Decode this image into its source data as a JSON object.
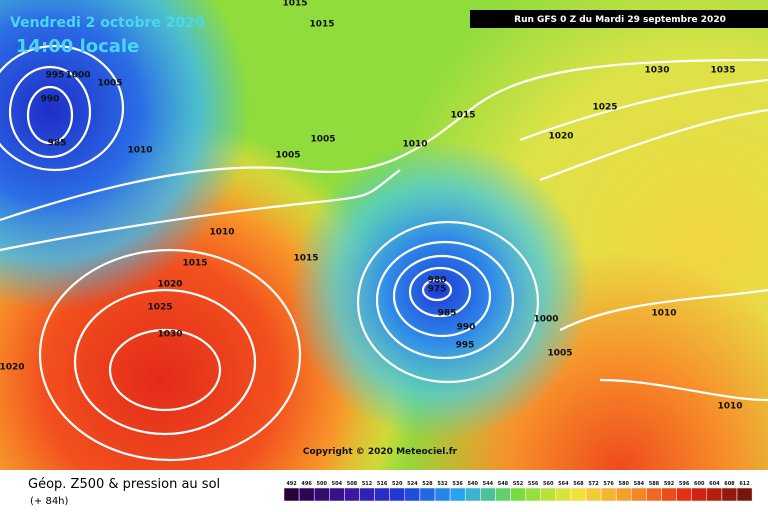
{
  "header": {
    "date": "Vendredi 2 octobre 2020",
    "time": "14:00 locale",
    "run": "Run GFS 0 Z du Mardi 29 septembre 2020"
  },
  "copyright": "Copyright © 2020 Meteociel.fr",
  "footer": {
    "title": "Géop. Z500 & pression au sol",
    "lead": "(+ 84h)"
  },
  "isobar_labels": [
    1015,
    1015,
    995,
    1000,
    1005,
    990,
    985,
    1010,
    1005,
    1005,
    1010,
    1015,
    1020,
    1025,
    1030,
    1035,
    1010,
    1015,
    1015,
    1020,
    1025,
    1030,
    1020,
    980,
    975,
    985,
    990,
    995,
    1000,
    1005,
    1010,
    1010
  ],
  "legend": [
    492,
    496,
    500,
    504,
    508,
    512,
    516,
    520,
    524,
    528,
    532,
    536,
    540,
    544,
    548,
    552,
    556,
    560,
    564,
    568,
    572,
    576,
    580,
    584,
    588,
    592,
    596,
    600,
    604,
    608,
    612
  ]
}
